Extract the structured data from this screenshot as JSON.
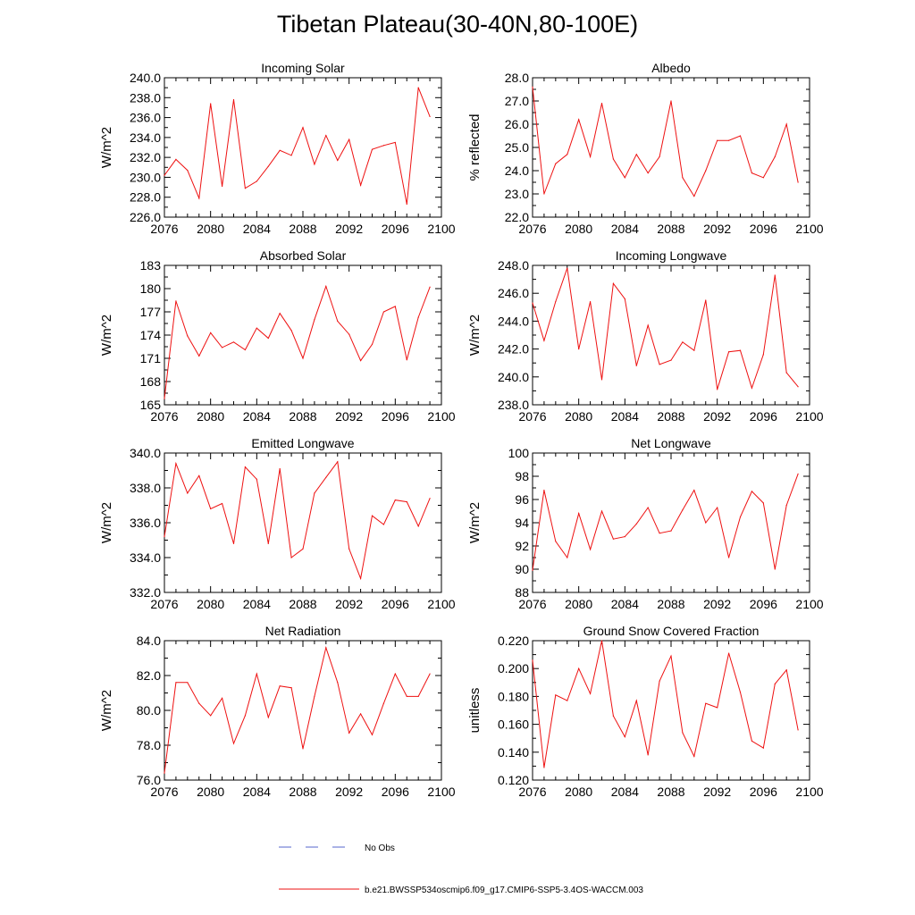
{
  "title": "Tibetan Plateau(30-40N,80-100E)",
  "legend": {
    "obs_label": "No Obs",
    "model_label": "b.e21.BWSSP534oscmip6.f09_g17.CMIP6-SSP5-3.4OS-WACCM.003",
    "obs_color": "#5566cc",
    "model_color": "#ee1111"
  },
  "x_axis": {
    "xlim": [
      2076,
      2100
    ],
    "ticks": [
      2076,
      2080,
      2084,
      2088,
      2092,
      2096,
      2100
    ],
    "tick_labels": [
      "2076",
      "2080",
      "2084",
      "2088",
      "2092",
      "2096",
      "2100"
    ]
  },
  "chart_data": [
    {
      "type": "line",
      "title": "Incoming Solar",
      "ylabel": "W/m^2",
      "ylim": [
        226,
        240
      ],
      "yticks": [
        226,
        228,
        230,
        232,
        234,
        236,
        238,
        240
      ],
      "ytick_labels": [
        "226.0",
        "228.0",
        "230.0",
        "232.0",
        "234.0",
        "236.0",
        "238.0",
        "240.0"
      ],
      "x": [
        2076,
        2077,
        2078,
        2079,
        2080,
        2081,
        2082,
        2083,
        2084,
        2085,
        2086,
        2087,
        2088,
        2089,
        2090,
        2091,
        2092,
        2093,
        2094,
        2095,
        2096,
        2097,
        2098,
        2099
      ],
      "values": [
        230.2,
        231.8,
        230.7,
        227.9,
        237.4,
        229.1,
        237.8,
        228.9,
        229.6,
        231.1,
        232.7,
        232.2,
        235.0,
        231.3,
        234.2,
        231.7,
        233.8,
        229.2,
        232.8,
        233.2,
        233.5,
        227.3,
        239.0,
        236.1
      ]
    },
    {
      "type": "line",
      "title": "Albedo",
      "ylabel": "% reflected",
      "ylim": [
        22,
        28
      ],
      "yticks": [
        22,
        23,
        24,
        25,
        26,
        27,
        28
      ],
      "ytick_labels": [
        "22.0",
        "23.0",
        "24.0",
        "25.0",
        "26.0",
        "27.0",
        "28.0"
      ],
      "x": [
        2076,
        2077,
        2078,
        2079,
        2080,
        2081,
        2082,
        2083,
        2084,
        2085,
        2086,
        2087,
        2088,
        2089,
        2090,
        2091,
        2092,
        2093,
        2094,
        2095,
        2096,
        2097,
        2098,
        2099
      ],
      "values": [
        27.6,
        23.0,
        24.3,
        24.7,
        26.2,
        24.6,
        26.9,
        24.5,
        23.7,
        24.7,
        23.9,
        24.6,
        27.0,
        23.7,
        22.9,
        24.0,
        25.3,
        25.3,
        25.5,
        23.9,
        23.7,
        24.6,
        26.0,
        23.5
      ]
    },
    {
      "type": "line",
      "title": "Absorbed Solar",
      "ylabel": "W/m^2",
      "ylim": [
        165,
        183
      ],
      "yticks": [
        165,
        168,
        171,
        174,
        177,
        180,
        183
      ],
      "ytick_labels": [
        "165",
        "168",
        "171",
        "174",
        "177",
        "180",
        "183"
      ],
      "x": [
        2076,
        2077,
        2078,
        2079,
        2080,
        2081,
        2082,
        2083,
        2084,
        2085,
        2086,
        2087,
        2088,
        2089,
        2090,
        2091,
        2092,
        2093,
        2094,
        2095,
        2096,
        2097,
        2098,
        2099
      ],
      "values": [
        165.8,
        178.4,
        173.9,
        171.3,
        174.3,
        172.4,
        173.1,
        172.1,
        174.9,
        173.6,
        176.8,
        174.6,
        171.0,
        176.0,
        180.3,
        175.8,
        174.1,
        170.7,
        172.8,
        177.0,
        177.7,
        170.8,
        176.3,
        180.2
      ]
    },
    {
      "type": "line",
      "title": "Incoming Longwave",
      "ylabel": "W/m^2",
      "ylim": [
        238,
        248
      ],
      "yticks": [
        238,
        240,
        242,
        244,
        246,
        248
      ],
      "ytick_labels": [
        "238.0",
        "240.0",
        "242.0",
        "244.0",
        "246.0",
        "248.0"
      ],
      "x": [
        2076,
        2077,
        2078,
        2079,
        2080,
        2081,
        2082,
        2083,
        2084,
        2085,
        2086,
        2087,
        2088,
        2089,
        2090,
        2091,
        2092,
        2093,
        2094,
        2095,
        2096,
        2097,
        2098,
        2099
      ],
      "values": [
        245.3,
        242.6,
        245.4,
        247.8,
        242.0,
        245.4,
        239.8,
        246.7,
        245.6,
        240.8,
        243.7,
        240.9,
        241.2,
        242.5,
        241.9,
        245.5,
        239.1,
        241.8,
        241.9,
        239.2,
        241.6,
        247.3,
        240.3,
        239.3
      ]
    },
    {
      "type": "line",
      "title": "Emitted Longwave",
      "ylabel": "W/m^2",
      "ylim": [
        332,
        340
      ],
      "yticks": [
        332,
        334,
        336,
        338,
        340
      ],
      "ytick_labels": [
        "332.0",
        "334.0",
        "336.0",
        "338.0",
        "340.0"
      ],
      "x": [
        2076,
        2077,
        2078,
        2079,
        2080,
        2081,
        2082,
        2083,
        2084,
        2085,
        2086,
        2087,
        2088,
        2089,
        2090,
        2091,
        2092,
        2093,
        2094,
        2095,
        2096,
        2097,
        2098,
        2099
      ],
      "values": [
        335.2,
        339.4,
        337.7,
        338.7,
        336.8,
        337.1,
        334.8,
        339.2,
        338.5,
        334.8,
        339.1,
        334.0,
        334.5,
        337.7,
        338.6,
        339.5,
        334.5,
        332.8,
        336.4,
        335.9,
        337.3,
        337.2,
        335.8,
        337.4
      ]
    },
    {
      "type": "line",
      "title": "Net Longwave",
      "ylabel": "W/m^2",
      "ylim": [
        88,
        100
      ],
      "yticks": [
        88,
        90,
        92,
        94,
        96,
        98,
        100
      ],
      "ytick_labels": [
        "88",
        "90",
        "92",
        "94",
        "96",
        "98",
        "100"
      ],
      "x": [
        2076,
        2077,
        2078,
        2079,
        2080,
        2081,
        2082,
        2083,
        2084,
        2085,
        2086,
        2087,
        2088,
        2089,
        2090,
        2091,
        2092,
        2093,
        2094,
        2095,
        2096,
        2097,
        2098,
        2099
      ],
      "values": [
        89.9,
        96.8,
        92.4,
        91.0,
        94.8,
        91.7,
        95.0,
        92.6,
        92.8,
        93.9,
        95.3,
        93.1,
        93.3,
        95.1,
        96.8,
        94.0,
        95.3,
        91.0,
        94.5,
        96.7,
        95.7,
        90.0,
        95.5,
        98.2
      ]
    },
    {
      "type": "line",
      "title": "Net Radiation",
      "ylabel": "W/m^2",
      "ylim": [
        76,
        84
      ],
      "yticks": [
        76,
        78,
        80,
        82,
        84
      ],
      "ytick_labels": [
        "76.0",
        "78.0",
        "80.0",
        "82.0",
        "84.0"
      ],
      "x": [
        2076,
        2077,
        2078,
        2079,
        2080,
        2081,
        2082,
        2083,
        2084,
        2085,
        2086,
        2087,
        2088,
        2089,
        2090,
        2091,
        2092,
        2093,
        2094,
        2095,
        2096,
        2097,
        2098,
        2099
      ],
      "values": [
        76.4,
        81.6,
        81.6,
        80.4,
        79.7,
        80.7,
        78.1,
        79.7,
        82.1,
        79.6,
        81.4,
        81.3,
        77.8,
        80.8,
        83.6,
        81.6,
        78.7,
        79.8,
        78.6,
        80.4,
        82.1,
        80.8,
        80.8,
        82.1
      ]
    },
    {
      "type": "line",
      "title": "Ground Snow Covered Fraction",
      "ylabel": "unitless",
      "ylim": [
        0.12,
        0.22
      ],
      "yticks": [
        0.12,
        0.14,
        0.16,
        0.18,
        0.2,
        0.22
      ],
      "ytick_labels": [
        "0.120",
        "0.140",
        "0.160",
        "0.180",
        "0.200",
        "0.220"
      ],
      "x": [
        2076,
        2077,
        2078,
        2079,
        2080,
        2081,
        2082,
        2083,
        2084,
        2085,
        2086,
        2087,
        2088,
        2089,
        2090,
        2091,
        2092,
        2093,
        2094,
        2095,
        2096,
        2097,
        2098,
        2099
      ],
      "values": [
        0.206,
        0.129,
        0.181,
        0.177,
        0.2,
        0.182,
        0.22,
        0.166,
        0.151,
        0.177,
        0.138,
        0.191,
        0.209,
        0.154,
        0.137,
        0.175,
        0.172,
        0.211,
        0.183,
        0.148,
        0.143,
        0.189,
        0.199,
        0.156
      ]
    }
  ]
}
